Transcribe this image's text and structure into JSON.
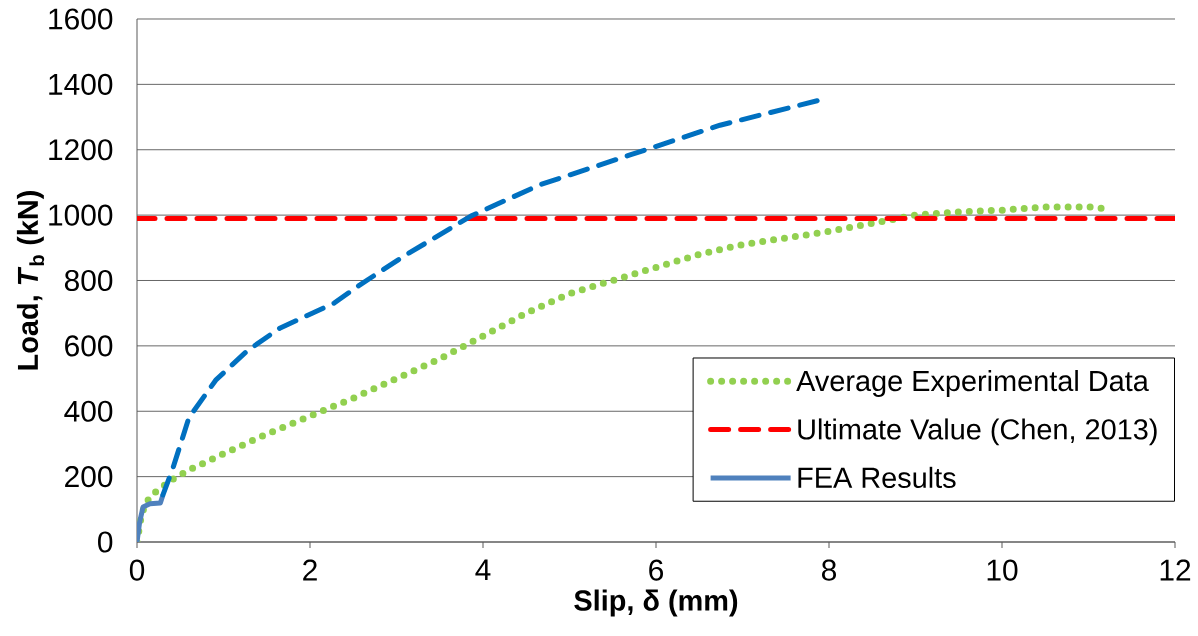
{
  "chart_data": {
    "type": "line",
    "xlabel": "Slip, δ (mm)",
    "ylabel": "Load, *T*$_{b}$ (kN)",
    "xlim": [
      0,
      12
    ],
    "ylim": [
      0,
      1600
    ],
    "xticks": [
      0,
      2,
      4,
      6,
      8,
      10,
      12
    ],
    "yticks": [
      0,
      200,
      400,
      600,
      800,
      1000,
      1200,
      1400,
      1600
    ],
    "grid": "y",
    "legend": "bottom right",
    "series": [
      {
        "name": "Average Experimental Data",
        "color": "#92d050",
        "line_style": "dotted",
        "x": [
          0,
          0.05,
          0.1,
          0.2,
          0.4,
          0.6,
          1,
          1.5,
          2,
          2.5,
          3,
          3.5,
          4,
          4.5,
          5,
          5.5,
          6,
          6.5,
          7,
          7.5,
          8,
          8.5,
          9,
          9.5,
          10,
          10.5,
          11,
          11.2
        ],
        "values": [
          0,
          80,
          120,
          150,
          190,
          220,
          270,
          330,
          385,
          440,
          500,
          560,
          630,
          700,
          760,
          800,
          840,
          880,
          910,
          930,
          950,
          975,
          1000,
          1010,
          1015,
          1025,
          1025,
          1020
        ]
      },
      {
        "name": "Ultimate Value (Chen, 2013)",
        "color": "#ff0000",
        "line_style": "dashed",
        "x": [
          0,
          12
        ],
        "values": [
          990,
          990
        ]
      },
      {
        "name": "FEA Results",
        "color": "#4f81bd",
        "line_style": "solid",
        "x": [
          0,
          0.03,
          0.07,
          0.15,
          0.27,
          0.3
        ],
        "values": [
          0,
          60,
          107,
          117,
          119,
          144
        ]
      },
      {
        "color": "#0070c0",
        "line_style": "dashed",
        "x": [
          0.3,
          0.42,
          0.6,
          0.91,
          1.27,
          1.65,
          2.28,
          2.54,
          3.07,
          3.86,
          4.65,
          5.7,
          6.74,
          7.94
        ],
        "values": [
          144,
          230,
          380,
          495,
          584,
          654,
          731,
          780,
          872,
          997,
          1092,
          1184,
          1275,
          1355
        ]
      }
    ]
  }
}
